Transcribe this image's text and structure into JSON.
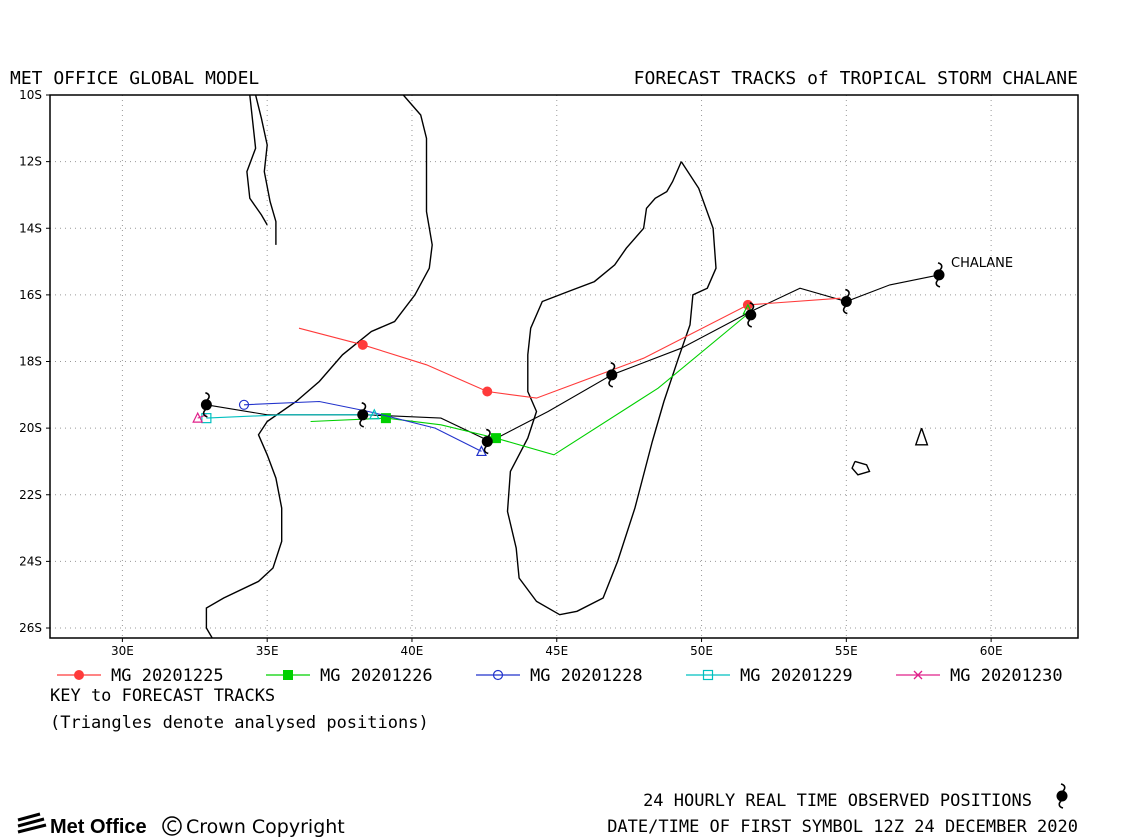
{
  "header": {
    "model_title": "MET OFFICE GLOBAL MODEL",
    "chart_title": "FORECAST TRACKS of TROPICAL STORM CHALANE"
  },
  "map": {
    "lon_range": [
      27.5,
      63.0
    ],
    "lat_range": [
      -26.3,
      -10.0
    ],
    "lon_ticks": [
      {
        "value": 30,
        "label": "30E"
      },
      {
        "value": 35,
        "label": "35E"
      },
      {
        "value": 40,
        "label": "40E"
      },
      {
        "value": 45,
        "label": "45E"
      },
      {
        "value": 50,
        "label": "50E"
      },
      {
        "value": 55,
        "label": "55E"
      },
      {
        "value": 60,
        "label": "60E"
      }
    ],
    "lat_ticks": [
      {
        "value": -10,
        "label": "10S"
      },
      {
        "value": -12,
        "label": "12S"
      },
      {
        "value": -14,
        "label": "14S"
      },
      {
        "value": -16,
        "label": "16S"
      },
      {
        "value": -18,
        "label": "18S"
      },
      {
        "value": -20,
        "label": "20S"
      },
      {
        "value": -22,
        "label": "22S"
      },
      {
        "value": -24,
        "label": "24S"
      },
      {
        "value": -26,
        "label": "26S"
      }
    ],
    "grid": "dotted",
    "storm_label": "CHALANE",
    "observed_track": [
      {
        "lon": 58.2,
        "lat": -15.4
      },
      {
        "lon": 56.5,
        "lat": -15.7
      },
      {
        "lon": 55.0,
        "lat": -16.2
      },
      {
        "lon": 53.4,
        "lat": -15.8
      },
      {
        "lon": 51.7,
        "lat": -16.5
      },
      {
        "lon": 49.3,
        "lat": -17.6
      },
      {
        "lon": 46.9,
        "lat": -18.4
      },
      {
        "lon": 44.7,
        "lat": -19.5
      },
      {
        "lon": 42.7,
        "lat": -20.4
      },
      {
        "lon": 41.0,
        "lat": -19.7
      },
      {
        "lon": 38.4,
        "lat": -19.6
      },
      {
        "lon": 35.0,
        "lat": -19.6
      },
      {
        "lon": 32.9,
        "lat": -19.3
      }
    ],
    "observed_symbols": [
      {
        "lon": 58.2,
        "lat": -15.4
      },
      {
        "lon": 55.0,
        "lat": -16.2
      },
      {
        "lon": 51.7,
        "lat": -16.6
      },
      {
        "lon": 46.9,
        "lat": -18.4
      },
      {
        "lon": 42.6,
        "lat": -20.4
      },
      {
        "lon": 38.3,
        "lat": -19.6
      },
      {
        "lon": 32.9,
        "lat": -19.3
      }
    ],
    "forecast_tracks": [
      {
        "name": "MG 20201225",
        "color": "#ff3b3b",
        "marker": "filled-circle",
        "points": [
          {
            "lon": 54.8,
            "lat": -16.1
          },
          {
            "lon": 51.6,
            "lat": -16.3
          },
          {
            "lon": 48.0,
            "lat": -17.9
          },
          {
            "lon": 44.3,
            "lat": -19.1
          },
          {
            "lon": 42.6,
            "lat": -18.9
          },
          {
            "lon": 40.5,
            "lat": -18.1
          },
          {
            "lon": 38.3,
            "lat": -17.5
          },
          {
            "lon": 36.1,
            "lat": -17.0
          }
        ],
        "marker_points": [
          {
            "lon": 51.6,
            "lat": -16.3
          },
          {
            "lon": 42.6,
            "lat": -18.9
          },
          {
            "lon": 38.3,
            "lat": -17.5
          }
        ]
      },
      {
        "name": "MG 20201226",
        "color": "#00d000",
        "marker": "filled-square",
        "points": [
          {
            "lon": 51.7,
            "lat": -16.5
          },
          {
            "lon": 48.5,
            "lat": -18.8
          },
          {
            "lon": 44.9,
            "lat": -20.8
          },
          {
            "lon": 42.9,
            "lat": -20.3
          },
          {
            "lon": 41.0,
            "lat": -19.9
          },
          {
            "lon": 39.1,
            "lat": -19.7
          },
          {
            "lon": 36.5,
            "lat": -19.8
          }
        ],
        "marker_points": [
          {
            "lon": 42.9,
            "lat": -20.3
          },
          {
            "lon": 39.1,
            "lat": -19.7
          }
        ]
      },
      {
        "name": "MG 20201228",
        "color": "#2233cc",
        "marker": "open-circle",
        "points": [
          {
            "lon": 42.4,
            "lat": -20.7
          },
          {
            "lon": 40.8,
            "lat": -20.0
          },
          {
            "lon": 38.5,
            "lat": -19.5
          },
          {
            "lon": 36.8,
            "lat": -19.2
          },
          {
            "lon": 34.2,
            "lat": -19.3
          }
        ],
        "marker_points": [
          {
            "lon": 34.2,
            "lat": -19.3
          }
        ]
      },
      {
        "name": "MG 20201229",
        "color": "#00c0c0",
        "marker": "open-square",
        "points": [
          {
            "lon": 38.7,
            "lat": -19.6
          },
          {
            "lon": 35.5,
            "lat": -19.6
          },
          {
            "lon": 32.9,
            "lat": -19.7
          }
        ],
        "marker_points": [
          {
            "lon": 32.9,
            "lat": -19.7
          }
        ]
      },
      {
        "name": "MG 20201230",
        "color": "#e0208a",
        "marker": "cross",
        "points": [
          {
            "lon": 32.9,
            "lat": -19.6
          },
          {
            "lon": 32.6,
            "lat": -19.7
          }
        ],
        "marker_points": []
      }
    ],
    "analysed_positions": [
      {
        "lon": 51.6,
        "lat": -16.45,
        "color": "#00d000"
      },
      {
        "lon": 42.4,
        "lat": -20.7,
        "color": "#2233cc"
      },
      {
        "lon": 38.7,
        "lat": -19.6,
        "color": "#00c0c0"
      },
      {
        "lon": 32.6,
        "lat": -19.7,
        "color": "#e0208a"
      }
    ],
    "coastline_africa": [
      [
        33.1,
        -26.3
      ],
      [
        32.9,
        -26.0
      ],
      [
        32.9,
        -25.4
      ],
      [
        33.5,
        -25.1
      ],
      [
        34.7,
        -24.6
      ],
      [
        35.2,
        -24.2
      ],
      [
        35.5,
        -23.4
      ],
      [
        35.5,
        -22.4
      ],
      [
        35.3,
        -21.5
      ],
      [
        35.0,
        -20.8
      ],
      [
        34.7,
        -20.2
      ],
      [
        35.0,
        -19.8
      ],
      [
        36.0,
        -19.2
      ],
      [
        36.8,
        -18.6
      ],
      [
        37.6,
        -17.8
      ],
      [
        38.6,
        -17.1
      ],
      [
        39.4,
        -16.8
      ],
      [
        40.1,
        -16.0
      ],
      [
        40.6,
        -15.2
      ],
      [
        40.7,
        -14.5
      ],
      [
        40.5,
        -13.5
      ],
      [
        40.5,
        -12.5
      ],
      [
        40.5,
        -11.3
      ],
      [
        40.3,
        -10.6
      ],
      [
        39.7,
        -10.0
      ]
    ],
    "coastline_lake_west": [
      [
        34.4,
        -10.0
      ],
      [
        34.5,
        -10.8
      ],
      [
        34.6,
        -11.6
      ],
      [
        34.3,
        -12.3
      ],
      [
        34.4,
        -13.1
      ],
      [
        34.8,
        -13.6
      ],
      [
        35.0,
        -13.9
      ]
    ],
    "coastline_lake_east": [
      [
        34.6,
        -10.0
      ],
      [
        34.8,
        -10.7
      ],
      [
        35.0,
        -11.5
      ],
      [
        34.9,
        -12.3
      ],
      [
        35.1,
        -13.2
      ],
      [
        35.3,
        -13.8
      ],
      [
        35.3,
        -14.5
      ]
    ],
    "coastline_madagascar": [
      [
        49.3,
        -12.0
      ],
      [
        49.9,
        -12.8
      ],
      [
        50.4,
        -14.0
      ],
      [
        50.5,
        -15.2
      ],
      [
        50.2,
        -15.8
      ],
      [
        49.7,
        -16.0
      ],
      [
        49.6,
        -16.9
      ],
      [
        49.2,
        -17.9
      ],
      [
        48.7,
        -19.2
      ],
      [
        48.3,
        -20.4
      ],
      [
        47.7,
        -22.4
      ],
      [
        47.1,
        -24.0
      ],
      [
        46.6,
        -25.1
      ],
      [
        45.7,
        -25.5
      ],
      [
        45.1,
        -25.6
      ],
      [
        44.3,
        -25.2
      ],
      [
        43.7,
        -24.5
      ],
      [
        43.6,
        -23.6
      ],
      [
        43.3,
        -22.5
      ],
      [
        43.4,
        -21.3
      ],
      [
        44.0,
        -20.3
      ],
      [
        44.3,
        -19.5
      ],
      [
        44.0,
        -18.9
      ],
      [
        44.0,
        -17.8
      ],
      [
        44.1,
        -17.0
      ],
      [
        44.5,
        -16.2
      ],
      [
        45.4,
        -15.9
      ],
      [
        46.3,
        -15.6
      ],
      [
        47.0,
        -15.1
      ],
      [
        47.4,
        -14.6
      ],
      [
        48.0,
        -14.0
      ],
      [
        48.1,
        -13.4
      ],
      [
        48.4,
        -13.1
      ],
      [
        48.8,
        -12.9
      ],
      [
        49.0,
        -12.6
      ],
      [
        49.3,
        -12.0
      ]
    ],
    "island_reunion": [
      [
        55.3,
        -21.0
      ],
      [
        55.7,
        -21.1
      ],
      [
        55.8,
        -21.3
      ],
      [
        55.4,
        -21.4
      ],
      [
        55.2,
        -21.2
      ],
      [
        55.3,
        -21.0
      ]
    ],
    "island_mauritius": [
      [
        57.6,
        -20.0
      ],
      [
        57.8,
        -20.5
      ],
      [
        57.4,
        -20.5
      ],
      [
        57.6,
        -20.0
      ]
    ]
  },
  "legend": {
    "entries": [
      "MG 20201225",
      "MG 20201226",
      "MG 20201228",
      "MG 20201229",
      "MG 20201230"
    ],
    "key_title": "KEY to FORECAST TRACKS",
    "key_note": "(Triangles denote analysed positions)"
  },
  "footer": {
    "logo_text": "Met Office",
    "copyright": "Crown Copyright",
    "observed_note": "24 HOURLY REAL TIME OBSERVED POSITIONS",
    "datetime_note": "DATE/TIME OF FIRST SYMBOL 12Z 24 DECEMBER 2020"
  }
}
